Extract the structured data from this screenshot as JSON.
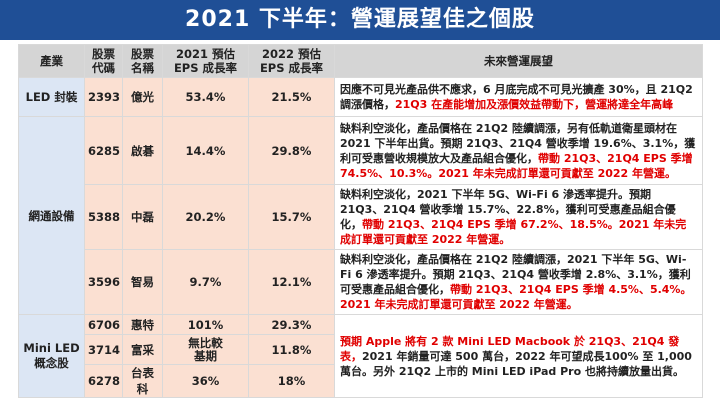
{
  "page_title": "2021 下半年：營運展望佳之個股",
  "headers": {
    "industry": "產業",
    "code_l1": "股票",
    "code_l2": "代碼",
    "name_l1": "股票",
    "name_l2": "名稱",
    "eps21_l1": "2021 預估",
    "eps21_l2": "EPS 成長率",
    "eps22_l1": "2022 預估",
    "eps22_l2": "EPS 成長率",
    "outlook": "未來營運展望"
  },
  "industries": {
    "led": "LED 封裝",
    "network": "網通設備",
    "miniled_l1": "Mini LED",
    "miniled_l2": "概念股"
  },
  "rows": [
    {
      "code": "2393",
      "name": "億光",
      "eps2021": "53.4%",
      "eps2022": "21.5%"
    },
    {
      "code": "6285",
      "name": "啟碁",
      "eps2021": "14.4%",
      "eps2022": "29.8%"
    },
    {
      "code": "5388",
      "name": "中磊",
      "eps2021": "20.2%",
      "eps2022": "15.7%"
    },
    {
      "code": "3596",
      "name": "智易",
      "eps2021": "9.7%",
      "eps2022": "12.1%"
    },
    {
      "code": "6706",
      "name": "惠特",
      "eps2021": "101%",
      "eps2022": "29.3%"
    },
    {
      "code": "3714",
      "name": "富采",
      "eps2021_l1": "無比較",
      "eps2021_l2": "基期",
      "eps2022": "11.8%"
    },
    {
      "code": "6278",
      "name": "台表科",
      "eps2021": "36%",
      "eps2022": "18%"
    }
  ],
  "outlooks": {
    "r0_black": "因應不可見光產品供不應求，6 月底完成不可見光擴產 30%，且 21Q2 調漲價格，",
    "r0_red": "21Q3 在產能增加及漲價效益帶動下，營運將達全年高峰",
    "r1_black": "缺料利空淡化，產品價格在 21Q2 陸續調漲，另有低軌道衛星頭材在 2021 下半年出貨。預期 21Q3、21Q4 營收季增 19.6%、3.1%，獲利可受惠營收規模放大及產品組合優化，",
    "r1_red": "帶動 21Q3、21Q4 EPS 季增 74.5%、10.3%。2021 年未完成訂單還可貢獻至 2022 年營運。",
    "r2_black": "缺料利空淡化，2021 下半年 5G、Wi-Fi 6 滲透率提升。預期 21Q3、21Q4 營收季增 15.7%、22.8%，獲利可受惠產品組合優化，",
    "r2_red": "帶動 21Q3、21Q4 EPS 季增 67.2%、18.5%。2021 年未完成訂單還可貢獻至 2022 年營運。",
    "r3_black": "缺料利空淡化，產品價格在 21Q2 陸續調漲，2021 下半年 5G、Wi-Fi 6 滲透率提升。預期 21Q3、21Q4 營收季增 2.8%、3.1%，獲利可受惠產品組合優化，",
    "r3_red": "帶動 21Q3、21Q4 EPS 季增 4.5%、5.4%。2021 年未完成訂單還可貢獻至 2022 年營運。",
    "r4_red": "預期 Apple 將有 2 款 Mini LED Macbook 於 21Q3、21Q4 發表，",
    "r4_black": "2021 年銷量可達 500 萬台，2022 年可望成長100% 至 1,000 萬台。另外 21Q2 上市的 Mini LED iPad Pro 也將持續放量出貨。"
  }
}
